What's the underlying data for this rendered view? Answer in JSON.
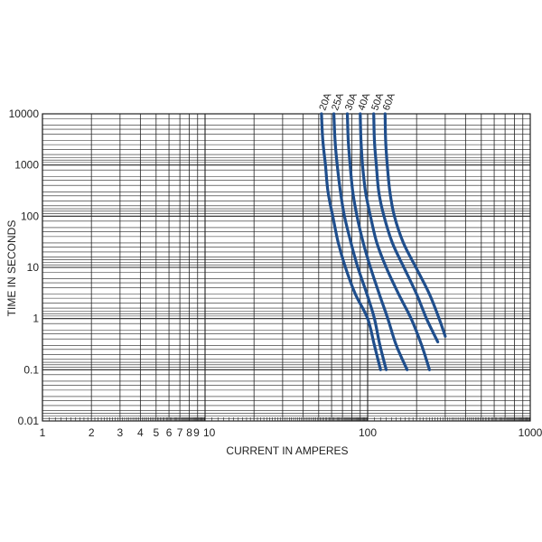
{
  "chart_data": {
    "type": "line",
    "xlabel": "CURRENT IN AMPERES",
    "ylabel": "TIME IN SECONDS",
    "x_scale": "log",
    "y_scale": "log",
    "xlim": [
      1,
      1000
    ],
    "ylim": [
      0.01,
      10000
    ],
    "grid": true,
    "line_color": "#1f4e8c",
    "grid_color": "#222222",
    "x_tick_labels": [
      {
        "value": 1,
        "label": "1"
      },
      {
        "value": 2,
        "label": "2"
      },
      {
        "value": 3,
        "label": "3"
      },
      {
        "value": 4,
        "label": "4"
      },
      {
        "value": 5,
        "label": "5"
      },
      {
        "value": 6,
        "label": "6"
      },
      {
        "value": 7,
        "label": "7"
      },
      {
        "value": 8,
        "label": "8"
      },
      {
        "value": 9,
        "label": "9"
      },
      {
        "value": 10,
        "label": "10"
      },
      {
        "value": 100,
        "label": "100"
      },
      {
        "value": 1000,
        "label": "1000"
      }
    ],
    "y_tick_labels": [
      {
        "value": 10000,
        "label": "10000"
      },
      {
        "value": 1000,
        "label": "1000"
      },
      {
        "value": 100,
        "label": "100"
      },
      {
        "value": 10,
        "label": "10"
      },
      {
        "value": 1,
        "label": "1"
      },
      {
        "value": 0.1,
        "label": "0.1"
      },
      {
        "value": 0.01,
        "label": "0.01"
      }
    ],
    "series": [
      {
        "name": "20A",
        "points": [
          [
            52,
            10000
          ],
          [
            53,
            3000
          ],
          [
            55,
            1000
          ],
          [
            57,
            300
          ],
          [
            61,
            100
          ],
          [
            66,
            30
          ],
          [
            73,
            10
          ],
          [
            84,
            3
          ],
          [
            100,
            1
          ],
          [
            110,
            0.3
          ],
          [
            120,
            0.1
          ]
        ]
      },
      {
        "name": "25A",
        "points": [
          [
            62,
            10000
          ],
          [
            63,
            3000
          ],
          [
            65,
            1000
          ],
          [
            68,
            300
          ],
          [
            72,
            100
          ],
          [
            79,
            30
          ],
          [
            87,
            10
          ],
          [
            99,
            3
          ],
          [
            110,
            1
          ],
          [
            119,
            0.3
          ],
          [
            130,
            0.1
          ]
        ]
      },
      {
        "name": "30A",
        "points": [
          [
            75,
            10000
          ],
          [
            76,
            3000
          ],
          [
            78,
            1000
          ],
          [
            81,
            300
          ],
          [
            86,
            100
          ],
          [
            94,
            30
          ],
          [
            104,
            10
          ],
          [
            118,
            3
          ],
          [
            133,
            1
          ],
          [
            150,
            0.3
          ],
          [
            175,
            0.1
          ]
        ]
      },
      {
        "name": "40A",
        "points": [
          [
            90,
            10000
          ],
          [
            91,
            3000
          ],
          [
            93,
            1000
          ],
          [
            97,
            300
          ],
          [
            104,
            100
          ],
          [
            114,
            30
          ],
          [
            130,
            10
          ],
          [
            155,
            3
          ],
          [
            185,
            1
          ],
          [
            215,
            0.3
          ],
          [
            240,
            0.1
          ]
        ]
      },
      {
        "name": "50A",
        "points": [
          [
            109,
            10000
          ],
          [
            110,
            3000
          ],
          [
            113,
            1000
          ],
          [
            117,
            300
          ],
          [
            126,
            100
          ],
          [
            142,
            30
          ],
          [
            167,
            10
          ],
          [
            200,
            3
          ],
          [
            230,
            1
          ],
          [
            270,
            0.35
          ]
        ]
      },
      {
        "name": "60A",
        "points": [
          [
            128,
            10000
          ],
          [
            129,
            3000
          ],
          [
            132,
            1000
          ],
          [
            137,
            300
          ],
          [
            146,
            100
          ],
          [
            166,
            30
          ],
          [
            198,
            10
          ],
          [
            240,
            3
          ],
          [
            275,
            1
          ],
          [
            300,
            0.45
          ]
        ]
      }
    ]
  }
}
